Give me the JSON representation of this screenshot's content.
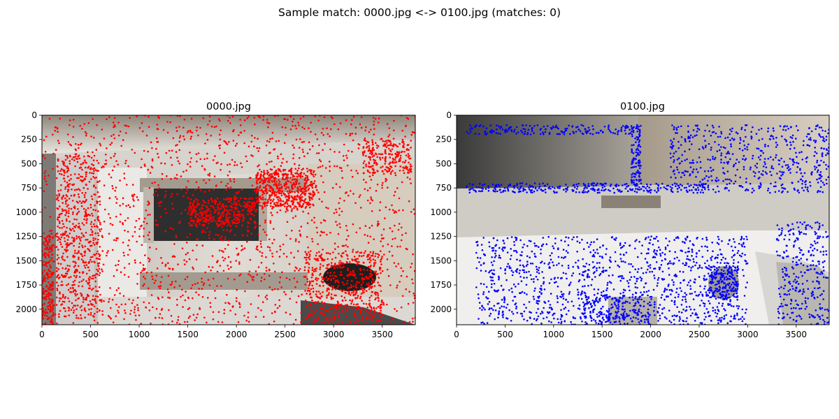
{
  "suptitle": "Sample match: 0000.jpg <-> 0100.jpg (matches: 0)",
  "chart_data": [
    {
      "type": "scatter",
      "title": "0000.jpg",
      "xlim": [
        0,
        3840
      ],
      "ylim": [
        2160,
        0
      ],
      "xticks": [
        0,
        500,
        1000,
        1500,
        2000,
        2500,
        3000,
        3500
      ],
      "yticks": [
        0,
        250,
        500,
        750,
        1000,
        1250,
        1500,
        1750,
        2000
      ],
      "grid": false,
      "background": "photo of an interior room seen from above (top-down view)",
      "series": [
        {
          "color": "#ff0000",
          "marker": "dot",
          "approx_count": 4000,
          "density_regions": [
            {
              "x": [
                0,
                3840
              ],
              "y": [
                0,
                2160
              ],
              "weight": 0.45
            },
            {
              "x": [
                2200,
                2800
              ],
              "y": [
                550,
                950
              ],
              "weight": 0.12
            },
            {
              "x": [
                1500,
                2200
              ],
              "y": [
                850,
                1150
              ],
              "weight": 0.08
            },
            {
              "x": [
                2700,
                3500
              ],
              "y": [
                1400,
                2160
              ],
              "weight": 0.12
            },
            {
              "x": [
                150,
                600
              ],
              "y": [
                400,
                2100
              ],
              "weight": 0.13
            },
            {
              "x": [
                0,
                120
              ],
              "y": [
                1250,
                2160
              ],
              "weight": 0.05
            },
            {
              "x": [
                3300,
                3800
              ],
              "y": [
                250,
                600
              ],
              "weight": 0.05
            }
          ]
        }
      ]
    },
    {
      "type": "scatter",
      "title": "0100.jpg",
      "xlim": [
        0,
        3840
      ],
      "ylim": [
        2160,
        0
      ],
      "xticks": [
        0,
        500,
        1000,
        1500,
        2000,
        2500,
        3000,
        3500
      ],
      "yticks": [
        0,
        250,
        500,
        750,
        1000,
        1250,
        1500,
        1750,
        2000
      ],
      "grid": false,
      "background": "photo of a room with a white counter and sink",
      "series": [
        {
          "color": "#0000ff",
          "marker": "dot",
          "approx_count": 3000,
          "density_regions": [
            {
              "x": [
                200,
                3000
              ],
              "y": [
                1250,
                2160
              ],
              "weight": 0.4
            },
            {
              "x": [
                100,
                1800
              ],
              "y": [
                100,
                200
              ],
              "weight": 0.06
            },
            {
              "x": [
                2200,
                3840
              ],
              "y": [
                100,
                800
              ],
              "weight": 0.18
            },
            {
              "x": [
                2600,
                2900
              ],
              "y": [
                1550,
                1900
              ],
              "weight": 0.06
            },
            {
              "x": [
                3300,
                3840
              ],
              "y": [
                1100,
                2160
              ],
              "weight": 0.1
            },
            {
              "x": [
                1800,
                1900
              ],
              "y": [
                100,
                750
              ],
              "weight": 0.04
            },
            {
              "x": [
                1300,
                2000
              ],
              "y": [
                1850,
                2160
              ],
              "weight": 0.06
            },
            {
              "x": [
                100,
                2600
              ],
              "y": [
                700,
                800
              ],
              "weight": 0.1
            }
          ]
        }
      ]
    }
  ]
}
